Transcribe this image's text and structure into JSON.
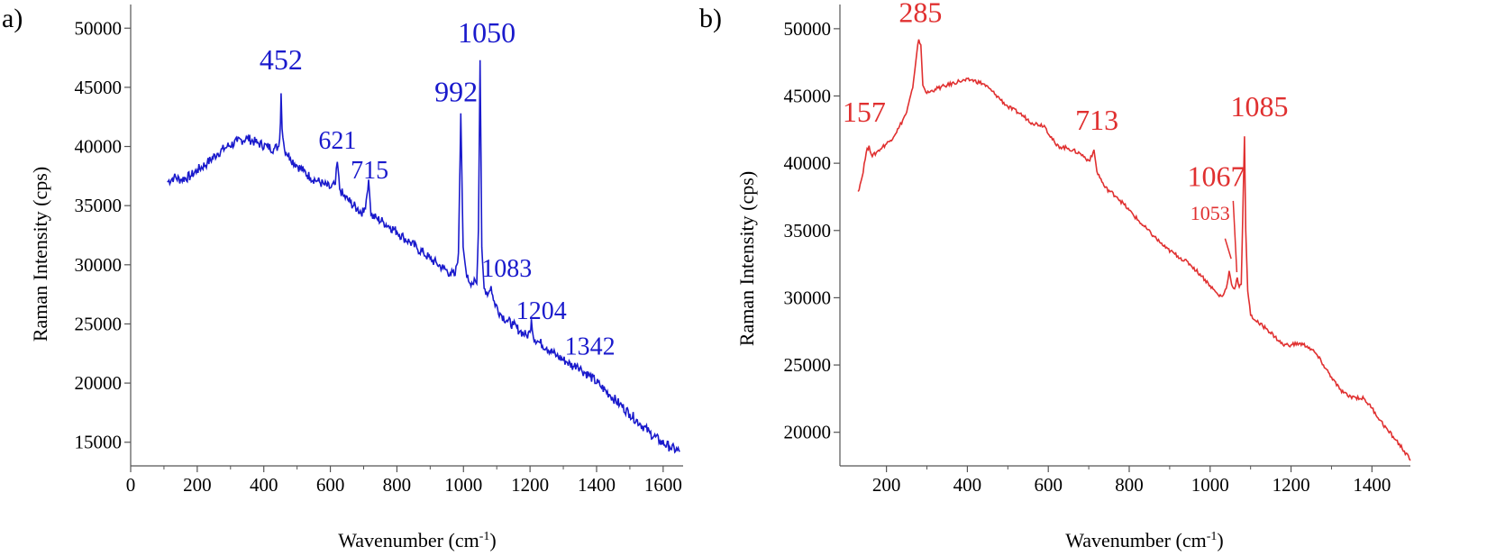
{
  "chart_data": [
    {
      "type": "line",
      "panel_label": "a)",
      "xlabel_main": "Wavenumber (cm",
      "xlabel_sup": "-1",
      "xlabel_end": ")",
      "ylabel": "Raman Intensity (cps)",
      "xlim": [
        0,
        1660
      ],
      "ylim": [
        13000,
        52000
      ],
      "x_ticks": [
        0,
        200,
        400,
        600,
        800,
        1000,
        1200,
        1400,
        1600
      ],
      "x_tick_labels": [
        "0",
        "200",
        "400",
        "600",
        "800",
        "1000",
        "1200",
        "1400",
        "1600"
      ],
      "y_ticks": [
        15000,
        20000,
        25000,
        30000,
        35000,
        40000,
        45000,
        50000
      ],
      "y_tick_labels": [
        "15000",
        "20000",
        "25000",
        "30000",
        "35000",
        "40000",
        "45000",
        "50000"
      ],
      "color": "#1a1acc",
      "series": [
        {
          "x": [
            110,
            130,
            150,
            180,
            200,
            230,
            260,
            290,
            320,
            350,
            380,
            410,
            430,
            445,
            450,
            452,
            455,
            462,
            480,
            500,
            520,
            540,
            560,
            580,
            600,
            615,
            621,
            628,
            640,
            660,
            680,
            700,
            708,
            715,
            722,
            740,
            760,
            780,
            800,
            820,
            840,
            860,
            880,
            900,
            920,
            940,
            960,
            975,
            985,
            992,
            999,
            1010,
            1025,
            1040,
            1045,
            1050,
            1055,
            1062,
            1075,
            1083,
            1090,
            1110,
            1130,
            1150,
            1170,
            1190,
            1200,
            1204,
            1210,
            1225,
            1250,
            1280,
            1310,
            1330,
            1342,
            1355,
            1380,
            1410,
            1440,
            1470,
            1500,
            1530,
            1560,
            1590,
            1620,
            1650
          ],
          "y": [
            37000,
            37400,
            37200,
            37500,
            38000,
            38600,
            39400,
            40000,
            40400,
            40700,
            40300,
            40000,
            39800,
            40000,
            42000,
            44500,
            41500,
            39800,
            39000,
            38400,
            37900,
            37400,
            37100,
            36800,
            36500,
            36800,
            38700,
            36400,
            35800,
            35300,
            34700,
            34400,
            35500,
            37200,
            34200,
            33900,
            33600,
            33200,
            32800,
            32300,
            31900,
            31400,
            31000,
            30500,
            30100,
            29700,
            29300,
            29100,
            31000,
            42800,
            31500,
            28900,
            28500,
            28400,
            33000,
            47300,
            31500,
            28000,
            27600,
            28200,
            27000,
            25900,
            25300,
            24900,
            24400,
            24000,
            24300,
            25400,
            23900,
            23500,
            23000,
            22300,
            21800,
            21400,
            21600,
            21100,
            20600,
            19800,
            19000,
            18200,
            17400,
            16600,
            15800,
            15100,
            14600,
            14200
          ]
        }
      ],
      "annotations": [
        {
          "text": "452",
          "x": 452,
          "y": 46500
        },
        {
          "text": "621",
          "x": 621,
          "y": 39800
        },
        {
          "text": "715",
          "x": 718,
          "y": 37300
        },
        {
          "text": "992",
          "x": 978,
          "y": 43800
        },
        {
          "text": "1050",
          "x": 1070,
          "y": 48800
        },
        {
          "text": "1083",
          "x": 1130,
          "y": 29000
        },
        {
          "text": "1204",
          "x": 1234,
          "y": 25400
        },
        {
          "text": "1342",
          "x": 1380,
          "y": 22400
        }
      ]
    },
    {
      "type": "line",
      "panel_label": "b)",
      "xlabel_main": "Wavenumber (cm",
      "xlabel_sup": "-1",
      "xlabel_end": ")",
      "ylabel": "Raman Intensity (cps)",
      "xlim": [
        85,
        1495
      ],
      "ylim": [
        17500,
        51800
      ],
      "x_ticks": [
        200,
        400,
        600,
        800,
        1000,
        1200,
        1400
      ],
      "x_tick_labels": [
        "200",
        "400",
        "600",
        "800",
        "1000",
        "1200",
        "1400"
      ],
      "y_ticks": [
        20000,
        25000,
        30000,
        35000,
        40000,
        45000,
        50000
      ],
      "y_tick_labels": [
        "20000",
        "25000",
        "30000",
        "35000",
        "40000",
        "45000",
        "50000"
      ],
      "color": "#e03030",
      "series": [
        {
          "x": [
            130,
            140,
            150,
            157,
            165,
            175,
            190,
            210,
            230,
            250,
            265,
            275,
            280,
            285,
            290,
            300,
            320,
            350,
            380,
            410,
            440,
            470,
            500,
            530,
            560,
            590,
            620,
            650,
            680,
            700,
            708,
            713,
            720,
            740,
            770,
            800,
            830,
            860,
            890,
            920,
            950,
            980,
            1000,
            1020,
            1030,
            1040,
            1047,
            1053,
            1058,
            1063,
            1067,
            1072,
            1077,
            1082,
            1085,
            1088,
            1093,
            1100,
            1120,
            1140,
            1160,
            1180,
            1200,
            1220,
            1240,
            1260,
            1280,
            1300,
            1320,
            1340,
            1360,
            1380,
            1400,
            1420,
            1440,
            1460,
            1480,
            1495
          ],
          "y": [
            37900,
            39000,
            40800,
            41300,
            40500,
            40800,
            41200,
            41700,
            42600,
            43800,
            45600,
            48200,
            49200,
            48800,
            45800,
            45200,
            45500,
            45800,
            46100,
            46200,
            45900,
            45100,
            44200,
            43700,
            43000,
            42800,
            41300,
            41100,
            40700,
            40200,
            40500,
            41000,
            39400,
            38200,
            37500,
            36500,
            35500,
            34600,
            33700,
            33100,
            32500,
            31600,
            30900,
            30200,
            30100,
            30700,
            32000,
            31000,
            30700,
            30900,
            31500,
            30800,
            31000,
            38000,
            42000,
            35000,
            30500,
            28700,
            28100,
            27700,
            27100,
            26500,
            26500,
            26600,
            26400,
            25900,
            25000,
            24100,
            23200,
            22700,
            22600,
            22500,
            21800,
            20900,
            20100,
            19400,
            18600,
            17900
          ]
        }
      ],
      "annotations": [
        {
          "text": "157",
          "x": 145,
          "y": 43100
        },
        {
          "text": "285",
          "x": 284,
          "y": 50500
        },
        {
          "text": "713",
          "x": 720,
          "y": 42500
        },
        {
          "text": "1053",
          "x": 1000,
          "y": 35800
        },
        {
          "text": "1067",
          "x": 1015,
          "y": 38300
        },
        {
          "text": "1085",
          "x": 1122,
          "y": 43500
        }
      ],
      "pointer_lines": [
        {
          "from": [
            1037,
            34400
          ],
          "to": [
            1052,
            32900
          ]
        },
        {
          "from": [
            1057,
            37200
          ],
          "to": [
            1066,
            31900
          ]
        }
      ]
    }
  ]
}
